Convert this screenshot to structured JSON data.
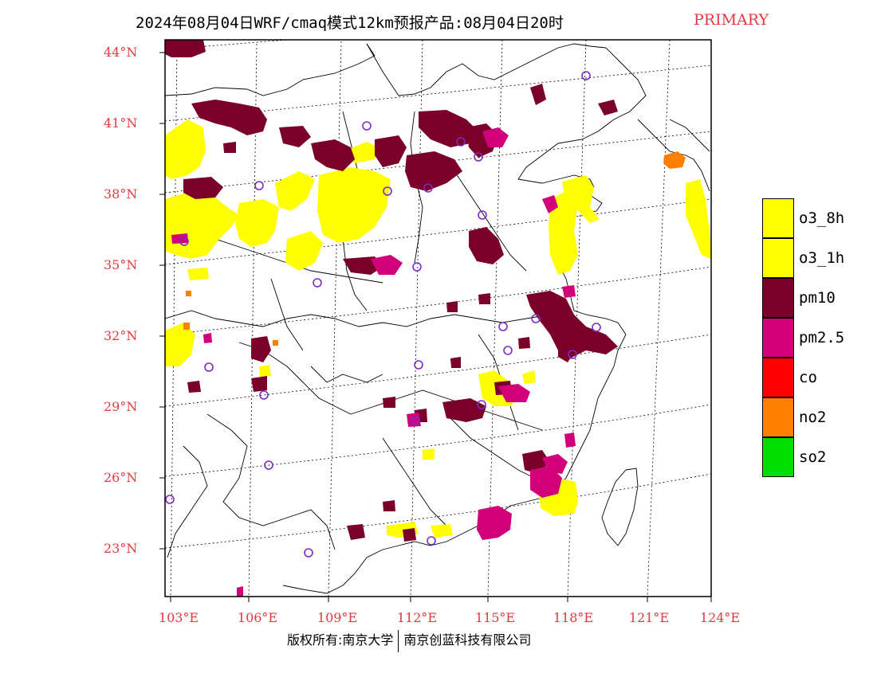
{
  "title": {
    "main": "2024年08月04日WRF/cmaq模式12km预报产品:08月04日20时",
    "tag": "PRIMARY"
  },
  "map": {
    "lat_labels": [
      "44°N",
      "41°N",
      "38°N",
      "35°N",
      "32°N",
      "29°N",
      "26°N",
      "23°N"
    ],
    "lon_labels": [
      "103°E",
      "106°E",
      "109°E",
      "112°E",
      "115°E",
      "118°E",
      "121°E",
      "124°E"
    ],
    "label_color": "#e8383f"
  },
  "legend": [
    {
      "label": "o3_8h",
      "color": "#ffff00"
    },
    {
      "label": "o3_1h",
      "color": "#ffff00"
    },
    {
      "label": "pm10",
      "color": "#7a0029"
    },
    {
      "label": "pm2.5",
      "color": "#d1007a"
    },
    {
      "label": "co",
      "color": "#ff0000"
    },
    {
      "label": "no2",
      "color": "#ff7f00"
    },
    {
      "label": "so2",
      "color": "#00dd00"
    }
  ],
  "copyright": {
    "left": "版权所有:南京大学",
    "right": "南京创蓝科技有限公司"
  }
}
